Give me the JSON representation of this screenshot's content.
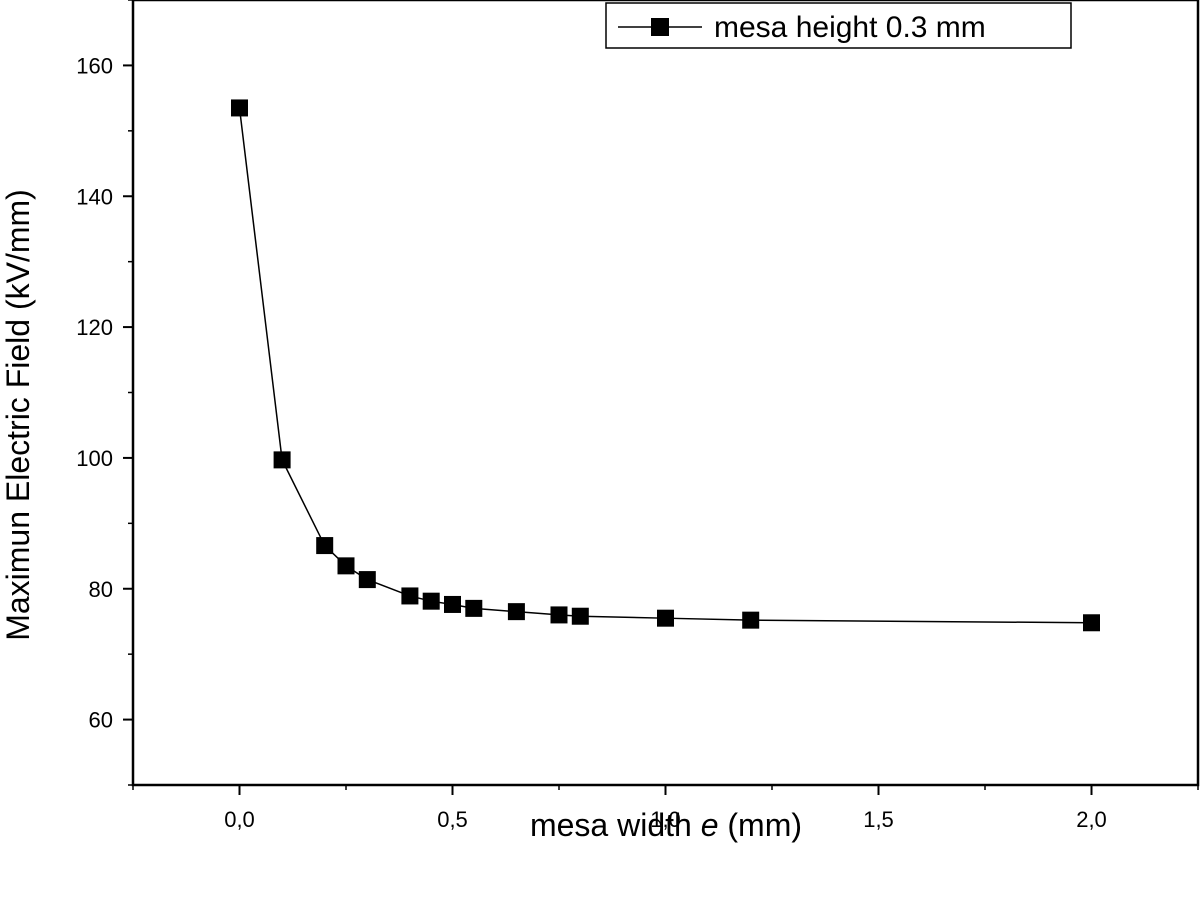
{
  "chart_data": {
    "type": "line",
    "xlabel_prefix": "mesa width ",
    "xlabel_var": "e",
    "xlabel_suffix": " (mm)",
    "ylabel": "Maximun Electric Field (kV/mm)",
    "xlim": [
      -0.25,
      2.25
    ],
    "ylim": [
      50,
      170
    ],
    "x_ticks": [
      0.0,
      0.5,
      1.0,
      1.5,
      2.0
    ],
    "x_tick_labels": [
      "0,0",
      "0,5",
      "1,0",
      "1,5",
      "2,0"
    ],
    "y_ticks": [
      60,
      80,
      100,
      120,
      140,
      160
    ],
    "y_tick_labels": [
      "60",
      "80",
      "100",
      "120",
      "140",
      "160"
    ],
    "grid": false,
    "legend_position": "top-right",
    "series": [
      {
        "name": "mesa height 0.3 mm",
        "color": "#000000",
        "marker": "square",
        "x": [
          0.0,
          0.1,
          0.2,
          0.25,
          0.3,
          0.4,
          0.45,
          0.5,
          0.55,
          0.65,
          0.75,
          0.8,
          1.0,
          1.2,
          2.0
        ],
        "y": [
          153.5,
          99.7,
          86.6,
          83.5,
          81.4,
          78.9,
          78.1,
          77.6,
          77.0,
          76.5,
          76.0,
          75.8,
          75.5,
          75.2,
          74.8
        ]
      }
    ]
  }
}
